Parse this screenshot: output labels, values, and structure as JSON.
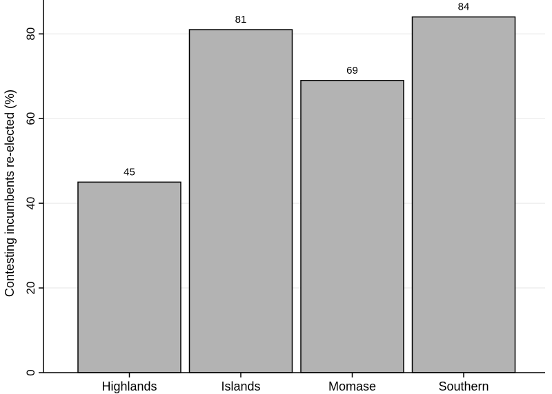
{
  "chart_data": {
    "type": "bar",
    "categories": [
      "Highlands",
      "Islands",
      "Momase",
      "Southern"
    ],
    "values": [
      45,
      81,
      69,
      84
    ],
    "data_labels": [
      "45",
      "81",
      "69",
      "84"
    ],
    "title": "",
    "xlabel": "",
    "ylabel": "Contesting incumbents re-elected (%)",
    "ylim": [
      0,
      88
    ],
    "yticks": [
      0,
      20,
      40,
      60,
      80
    ],
    "ytick_labels": [
      "0",
      "20",
      "40",
      "60",
      "80"
    ],
    "grid": true,
    "legend": "none",
    "colors": {
      "bar_fill": "#b3b3b3",
      "bar_stroke": "#000000",
      "grid": "#e6e6e6",
      "axis": "#000000",
      "background": "#ffffff"
    }
  }
}
